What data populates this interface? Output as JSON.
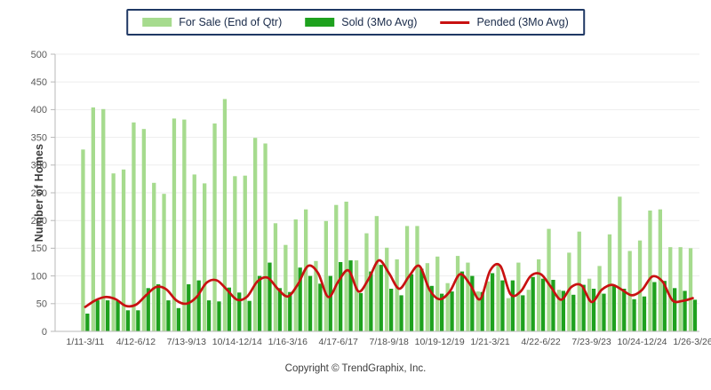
{
  "legend": {
    "items": [
      {
        "label": "For Sale (End of Qtr)",
        "swatch": "box"
      },
      {
        "label": "Sold (3Mo Avg)",
        "swatch": "box"
      },
      {
        "label": "Pended (3Mo Avg)",
        "swatch": "line"
      }
    ]
  },
  "y_axis_title": "Number of Homes",
  "footer": {
    "copyright": "Copyright © TrendGraphix, Inc."
  },
  "colors": {
    "grid": "#EDEDED",
    "axis": "#B8B8B8",
    "tick_label": "#595959",
    "legend_border": "#1F3864",
    "for_sale_green": "#A6DB8E",
    "sold_green": "#1EA11E",
    "pended_red": "#C81111"
  },
  "chart_data": {
    "type": "bar",
    "title": "",
    "ylabel": "Number of Homes",
    "ylim": [
      0,
      500
    ],
    "ytick_step": 50,
    "grid": "horizontal",
    "legend_position": "top",
    "n_points": 61,
    "x_tick_interval": 5,
    "x_tick_labels": [
      "1/11-3/11",
      "4/12-6/12",
      "7/13-9/13",
      "10/14-12/14",
      "1/16-3/16",
      "4/17-6/17",
      "7/18-9/18",
      "10/19-12/19",
      "1/21-3/21",
      "4/22-6/22",
      "7/23-9/23",
      "10/24-12/24",
      "1/26-3/26"
    ],
    "series": [
      {
        "name": "For Sale (End of Qtr)",
        "type": "bar",
        "color": "#A6DB8E",
        "values": [
          328,
          404,
          401,
          285,
          292,
          377,
          365,
          268,
          248,
          384,
          382,
          283,
          267,
          375,
          419,
          280,
          281,
          349,
          339,
          195,
          156,
          202,
          220,
          127,
          199,
          228,
          234,
          128,
          177,
          208,
          151,
          130,
          190,
          190,
          123,
          135,
          87,
          136,
          124,
          72,
          90,
          120,
          60,
          124,
          75,
          130,
          185,
          75,
          142,
          180,
          95,
          118,
          175,
          243,
          145,
          164,
          218,
          220,
          152,
          152,
          150
        ]
      },
      {
        "name": "Sold (3Mo Avg)",
        "type": "bar",
        "color": "#1EA11E",
        "values": [
          32,
          56,
          56,
          55,
          38,
          38,
          78,
          85,
          56,
          42,
          85,
          92,
          56,
          54,
          79,
          70,
          55,
          100,
          124,
          78,
          71,
          115,
          100,
          86,
          100,
          125,
          128,
          69,
          108,
          120,
          77,
          65,
          103,
          113,
          82,
          68,
          72,
          108,
          100,
          71,
          105,
          92,
          92,
          65,
          98,
          95,
          93,
          73,
          66,
          84,
          77,
          68,
          82,
          77,
          58,
          63,
          89,
          91,
          78,
          73,
          57
        ]
      },
      {
        "name": "Pended (3Mo Avg)",
        "type": "line",
        "color": "#C81111",
        "values": [
          44,
          56,
          62,
          58,
          46,
          48,
          65,
          80,
          76,
          56,
          50,
          62,
          88,
          92,
          75,
          57,
          63,
          90,
          97,
          77,
          63,
          85,
          118,
          105,
          62,
          90,
          110,
          72,
          95,
          128,
          105,
          77,
          100,
          118,
          75,
          58,
          72,
          103,
          85,
          58,
          110,
          118,
          67,
          72,
          100,
          103,
          80,
          57,
          80,
          83,
          53,
          75,
          84,
          75,
          65,
          75,
          99,
          90,
          56,
          55,
          60
        ]
      }
    ]
  }
}
